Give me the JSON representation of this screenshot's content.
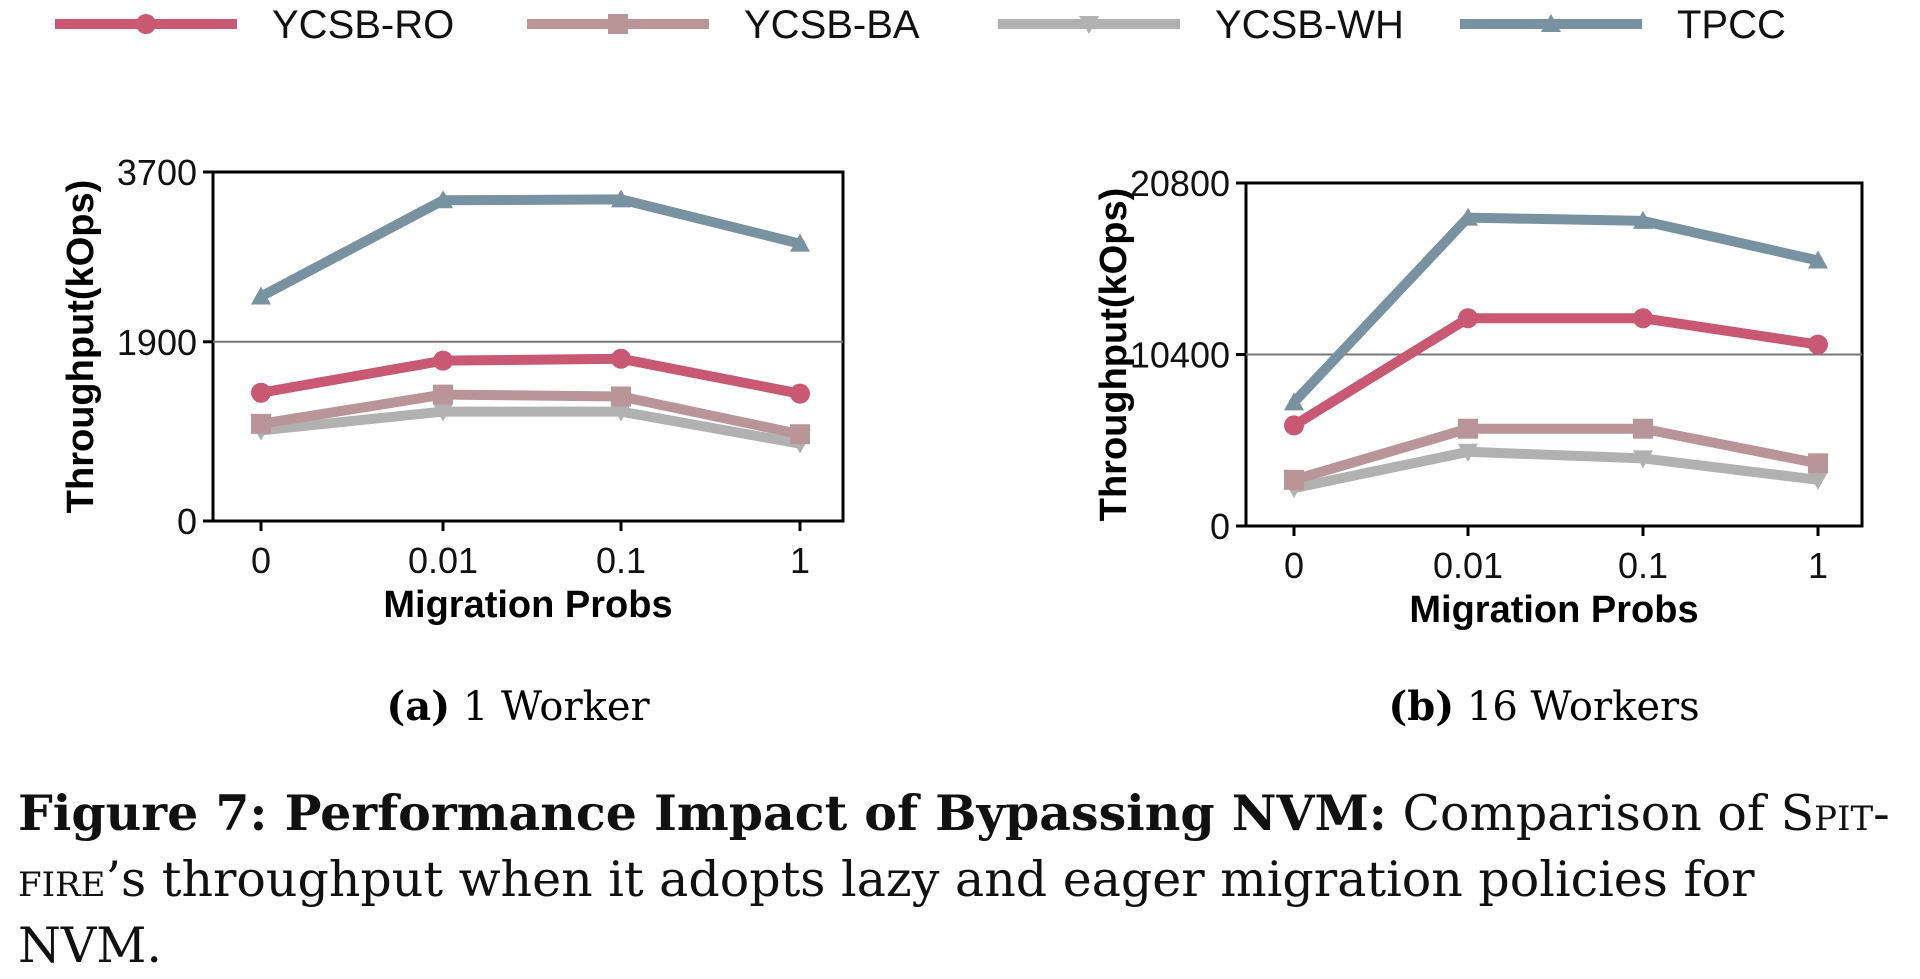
{
  "colors": {
    "YCSB-RO": "#c95873",
    "YCSB-BA": "#b99598",
    "YCSB-WH": "#b1b1b1",
    "TPCC": "#7892a1"
  },
  "legend": [
    {
      "name": "YCSB-RO",
      "marker": "circle"
    },
    {
      "name": "YCSB-BA",
      "marker": "square"
    },
    {
      "name": "YCSB-WH",
      "marker": "triangle-down"
    },
    {
      "name": "TPCC",
      "marker": "triangle-up"
    }
  ],
  "chart_data": [
    {
      "type": "line",
      "panel_label": "(a)",
      "panel_title": "1 Worker",
      "xlabel": "Migration Probs",
      "ylabel": "Throughput(kOps)",
      "categories": [
        "0",
        "0.01",
        "0.1",
        "1"
      ],
      "ylim": [
        0,
        3700
      ],
      "yticks": [
        "0",
        "1900",
        "3700"
      ],
      "hline": 1900,
      "series": [
        {
          "name": "YCSB-RO",
          "values": [
            1360,
            1700,
            1720,
            1350
          ]
        },
        {
          "name": "YCSB-BA",
          "values": [
            1030,
            1340,
            1320,
            920
          ]
        },
        {
          "name": "YCSB-WH",
          "values": [
            960,
            1160,
            1160,
            820
          ]
        },
        {
          "name": "TPCC",
          "values": [
            2380,
            3400,
            3410,
            2940
          ]
        }
      ]
    },
    {
      "type": "line",
      "panel_label": "(b)",
      "panel_title": "16 Workers",
      "xlabel": "Migration Probs",
      "ylabel": "Throughput(kOps)",
      "categories": [
        "0",
        "0.01",
        "0.1",
        "1"
      ],
      "ylim": [
        0,
        20800
      ],
      "yticks": [
        "0",
        "10400",
        "20800"
      ],
      "hline": 10400,
      "series": [
        {
          "name": "YCSB-RO",
          "values": [
            6100,
            12600,
            12600,
            11000
          ]
        },
        {
          "name": "YCSB-BA",
          "values": [
            2800,
            5900,
            5900,
            3800
          ]
        },
        {
          "name": "YCSB-WH",
          "values": [
            2300,
            4500,
            4100,
            2800
          ]
        },
        {
          "name": "TPCC",
          "values": [
            7500,
            18700,
            18500,
            16100
          ]
        }
      ]
    }
  ],
  "caption": {
    "prefix": "Figure 7: Performance Impact of Bypassing NVM:",
    "text_1": " Comparison of ",
    "smallcaps_1": "Spit-",
    "smallcaps_2": "fire",
    "text_2": "’s throughput when it adopts lazy and eager migration policies for NVM."
  }
}
